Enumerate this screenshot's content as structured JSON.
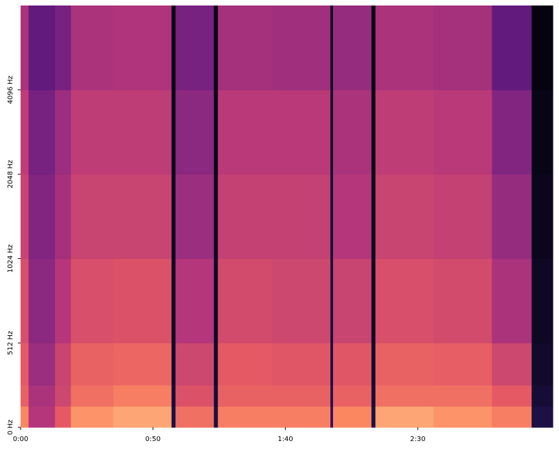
{
  "chart_data": {
    "type": "heatmap",
    "x_edges": [
      0,
      3,
      13,
      19,
      35,
      57,
      58.5,
      73,
      74.5,
      95,
      117,
      118,
      132.5,
      134,
      156,
      178,
      193,
      201
    ],
    "y_edges": [
      0,
      128,
      256,
      512,
      1024,
      2048,
      4096,
      8192
    ],
    "z": [
      [
        -20,
        -40,
        -30,
        -18,
        -15,
        -70,
        -25,
        -70,
        -22,
        -22,
        -65,
        -20,
        -70,
        -15,
        -18,
        -22,
        -70
      ],
      [
        -28,
        -42,
        -35,
        -25,
        -22,
        -72,
        -32,
        -72,
        -28,
        -28,
        -68,
        -28,
        -72,
        -25,
        -25,
        -30,
        -72
      ],
      [
        -30,
        -45,
        -36,
        -28,
        -27,
        -74,
        -35,
        -74,
        -30,
        -31,
        -70,
        -31,
        -74,
        -28,
        -29,
        -35,
        -74
      ],
      [
        -33,
        -48,
        -40,
        -33,
        -32,
        -75,
        -40,
        -75,
        -34,
        -35,
        -72,
        -36,
        -75,
        -33,
        -34,
        -42,
        -75
      ],
      [
        -36,
        -50,
        -43,
        -36,
        -36,
        -76,
        -45,
        -76,
        -37,
        -37,
        -73,
        -40,
        -76,
        -36,
        -37,
        -46,
        -76
      ],
      [
        -38,
        -52,
        -45,
        -38,
        -38,
        -77,
        -48,
        -77,
        -39,
        -39,
        -74,
        -42,
        -77,
        -38,
        -39,
        -50,
        -77
      ],
      [
        -42,
        -56,
        -52,
        -42,
        -41,
        -78,
        -52,
        -78,
        -43,
        -44,
        -75,
        -46,
        -78,
        -42,
        -43,
        -56,
        -78
      ]
    ],
    "zlim": [
      -80,
      0
    ],
    "colormap": "magma",
    "xlim": [
      0,
      201
    ],
    "xticks": [
      {
        "value": 0,
        "label": "0:00"
      },
      {
        "value": 50,
        "label": "0:50"
      },
      {
        "value": 100,
        "label": "1:40"
      },
      {
        "value": 150,
        "label": "2:30"
      }
    ],
    "ylim": [
      0,
      8192
    ],
    "yscale": "symlog",
    "linthresh": 512,
    "yticks": [
      {
        "value": 0,
        "label": "0 Hz"
      },
      {
        "value": 512,
        "label": "512 Hz"
      },
      {
        "value": 1024,
        "label": "1024 Hz"
      },
      {
        "value": 2048,
        "label": "2048 Hz"
      },
      {
        "value": 4096,
        "label": "4096 Hz"
      }
    ]
  }
}
